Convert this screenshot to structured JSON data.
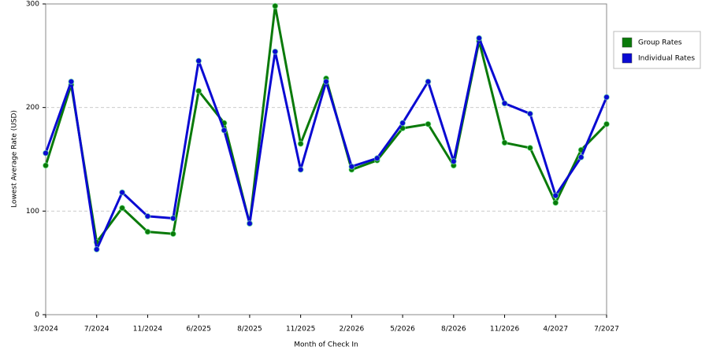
{
  "chart_data": {
    "type": "line",
    "x_label": "Month of Check In",
    "y_label": "Lowest Average Rate (USD)",
    "categories": [
      "3/2024",
      null,
      "7/2024",
      null,
      "11/2024",
      null,
      "6/2025",
      null,
      "8/2025",
      null,
      "11/2025",
      null,
      "2/2026",
      null,
      "5/2026",
      null,
      "8/2026",
      null,
      "11/2026",
      null,
      "4/2027",
      null,
      "7/2027"
    ],
    "series": [
      {
        "name": "Group Rates",
        "color": "#0a7a0a",
        "values": [
          144,
          222,
          70,
          103,
          80,
          78,
          216,
          185,
          88,
          298,
          165,
          228,
          140,
          149,
          180,
          184,
          144,
          264,
          166,
          161,
          108,
          159,
          184
        ]
      },
      {
        "name": "Individual Rates",
        "color": "#0a0ad2",
        "values": [
          156,
          225,
          63,
          118,
          95,
          93,
          245,
          178,
          88,
          254,
          140,
          225,
          143,
          151,
          185,
          225,
          148,
          267,
          204,
          194,
          115,
          152,
          210
        ]
      }
    ],
    "ylim": [
      0,
      300
    ],
    "yticks": [
      0,
      100,
      200,
      300
    ],
    "grid": true,
    "legend": "right"
  }
}
